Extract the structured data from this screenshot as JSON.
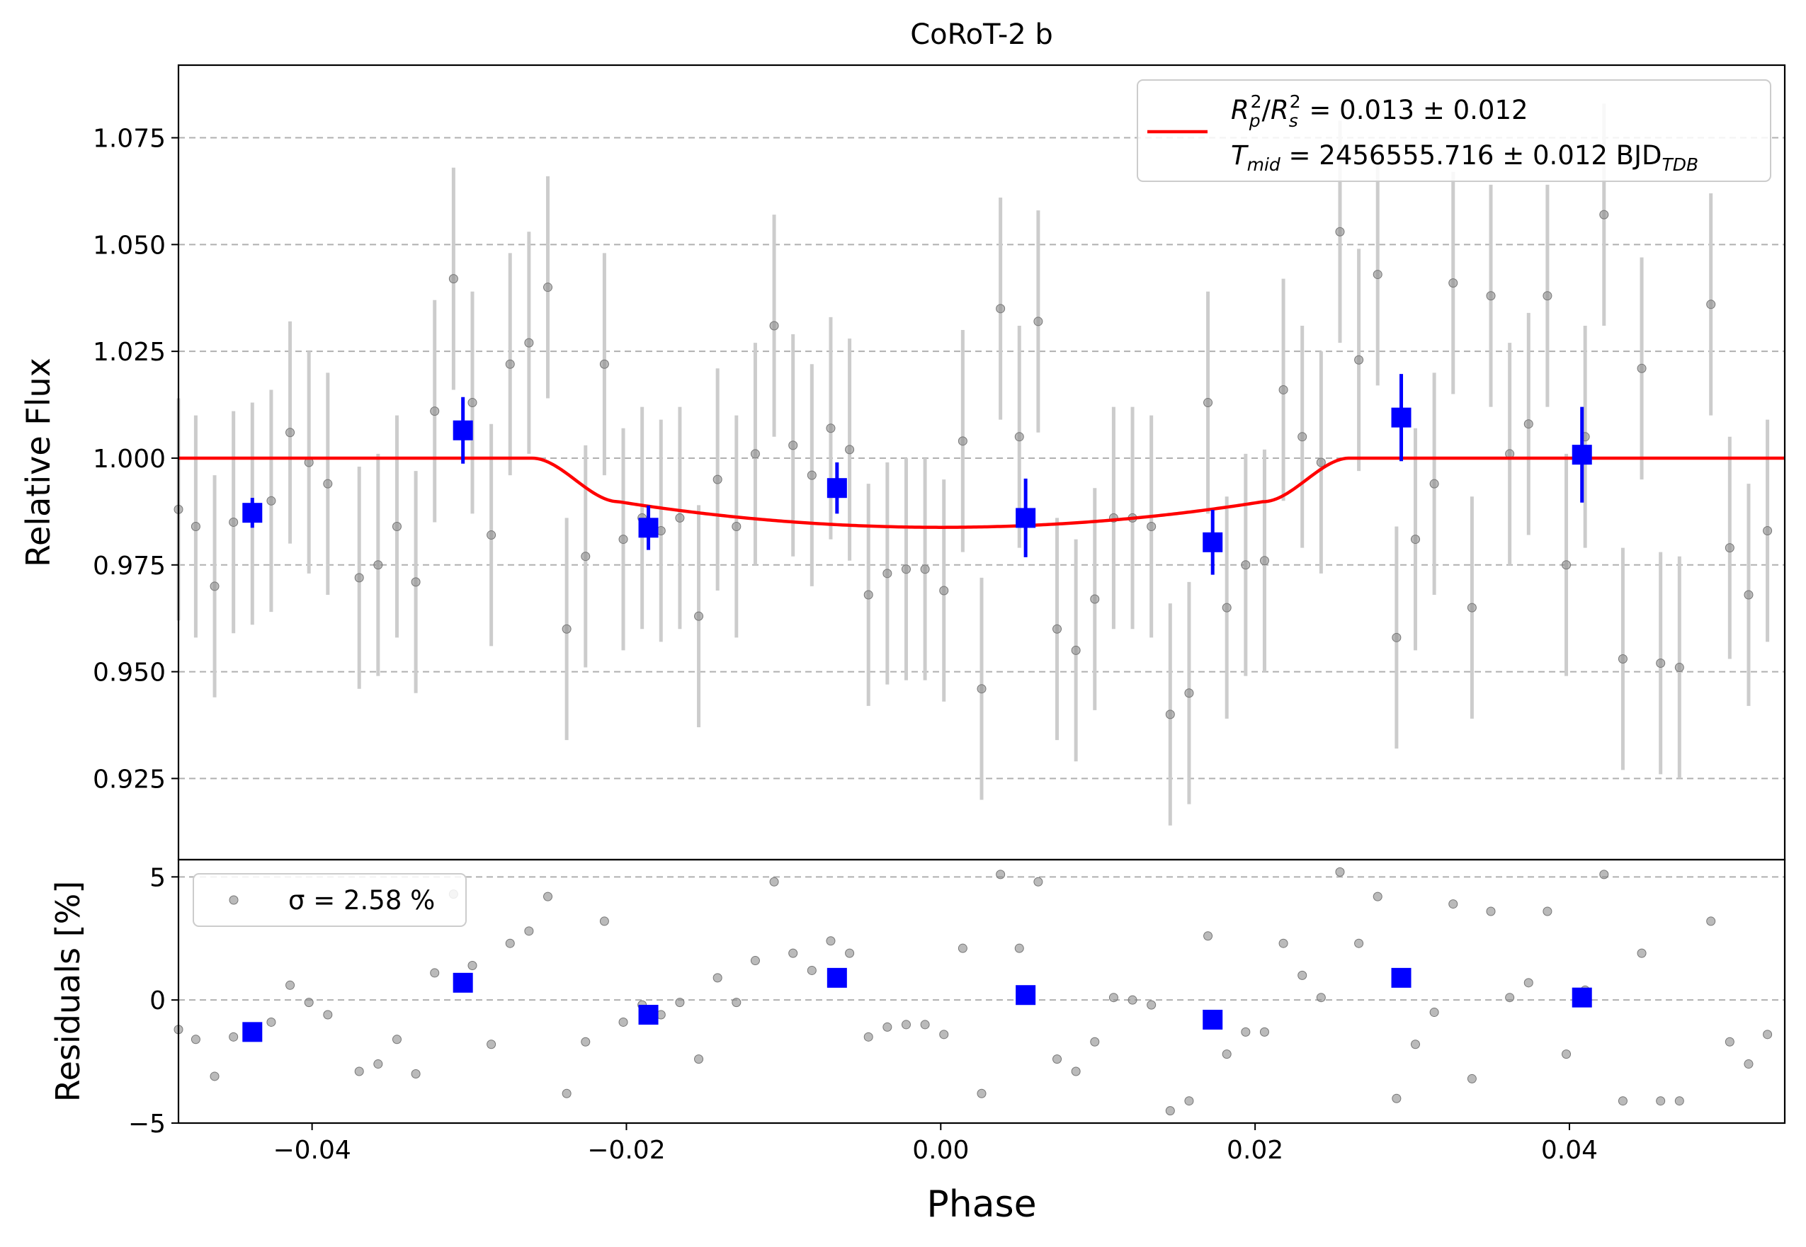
{
  "chart_data": [
    {
      "panel": "main",
      "type": "scatter",
      "title": "CoRoT-2 b",
      "xlabel": "Phase",
      "ylabel": "Relative Flux",
      "xlim": [
        -0.0485,
        0.0537
      ],
      "ylim": [
        0.906,
        1.092
      ],
      "yticks": [
        0.925,
        0.95,
        0.975,
        1.0,
        1.025,
        1.05,
        1.075
      ],
      "ytick_labels": [
        "0.925",
        "0.950",
        "0.975",
        "1.000",
        "1.025",
        "1.050",
        "1.075"
      ],
      "grid": "horizontal dashed",
      "legend_position": "top-right",
      "model": {
        "name_line1": "R_p^2/R_s^2 = 0.013 ± 0.012",
        "name_line2": "T_mid = 2456555.716 ± 0.012 BJD_TDB",
        "color": "#ff0000",
        "depth": 0.0162,
        "t14_half": 0.026,
        "t23_half": 0.0205,
        "ingress_level": 0.9898
      },
      "raw_points": {
        "color": "#8c8c8c",
        "errorbar_color": "#cccccc",
        "x": [
          -0.0485,
          -0.0474,
          -0.0462,
          -0.045,
          -0.0438,
          -0.0426,
          -0.0414,
          -0.0402,
          -0.039,
          -0.037,
          -0.0358,
          -0.0346,
          -0.0334,
          -0.0322,
          -0.031,
          -0.0298,
          -0.0286,
          -0.0274,
          -0.0262,
          -0.025,
          -0.0238,
          -0.0226,
          -0.0214,
          -0.0202,
          -0.019,
          -0.0178,
          -0.0166,
          -0.0154,
          -0.0142,
          -0.013,
          -0.0118,
          -0.0106,
          -0.0094,
          -0.0082,
          -0.007,
          -0.0058,
          -0.0046,
          -0.0034,
          -0.0022,
          -0.001,
          0.0002,
          0.0014,
          0.0026,
          0.0038,
          0.005,
          0.0062,
          0.0074,
          0.0086,
          0.0098,
          0.011,
          0.0122,
          0.0134,
          0.0146,
          0.0158,
          0.017,
          0.0182,
          0.0194,
          0.0206,
          0.0218,
          0.023,
          0.0242,
          0.0254,
          0.0266,
          0.0278,
          0.029,
          0.0302,
          0.0314,
          0.0326,
          0.0338,
          0.035,
          0.0362,
          0.0374,
          0.0386,
          0.0398,
          0.041,
          0.0422,
          0.0434,
          0.0446,
          0.0458,
          0.047,
          0.049,
          0.0502,
          0.0514,
          0.0526,
          0.0538
        ],
        "y": [
          0.988,
          0.984,
          0.97,
          0.985,
          0.987,
          0.99,
          1.006,
          0.999,
          0.994,
          0.972,
          0.975,
          0.984,
          0.971,
          1.011,
          1.042,
          1.013,
          0.982,
          1.022,
          1.027,
          1.04,
          0.96,
          0.977,
          1.022,
          0.981,
          0.986,
          0.983,
          0.986,
          0.963,
          0.995,
          0.984,
          1.001,
          1.031,
          1.003,
          0.996,
          1.007,
          1.002,
          0.968,
          0.973,
          0.974,
          0.974,
          0.969,
          1.004,
          0.946,
          1.035,
          1.005,
          1.032,
          0.96,
          0.955,
          0.967,
          0.986,
          0.986,
          0.984,
          0.94,
          0.945,
          1.013,
          0.965,
          0.975,
          0.976,
          1.016,
          1.005,
          0.999,
          1.053,
          1.023,
          1.043,
          0.958,
          0.981,
          0.994,
          1.041,
          0.965,
          1.038,
          1.001,
          1.008,
          1.038,
          0.975,
          1.005,
          1.057,
          0.953,
          1.021,
          0.952,
          0.951,
          1.036,
          0.979,
          0.968,
          0.983,
          0.987
        ],
        "yerr": 0.026,
        "residuals": [
          -1.2,
          -1.6,
          -3.1,
          -1.5,
          -1.3,
          -0.9,
          0.6,
          -0.1,
          -0.6,
          -2.9,
          -2.6,
          -1.6,
          -3.0,
          1.1,
          4.3,
          1.4,
          -1.8,
          2.3,
          2.8,
          4.2,
          -3.8,
          -1.7,
          3.2,
          -0.9,
          -0.2,
          -0.6,
          -0.1,
          -2.4,
          0.9,
          -0.1,
          1.6,
          4.8,
          1.9,
          1.2,
          2.4,
          1.9,
          -1.5,
          -1.1,
          -1.0,
          -1.0,
          -1.4,
          2.1,
          -3.8,
          5.1,
          2.1,
          4.8,
          -2.4,
          -2.9,
          -1.7,
          0.1,
          0.0,
          -0.2,
          -4.5,
          -4.1,
          2.6,
          -2.2,
          -1.3,
          -1.3,
          2.3,
          1.0,
          0.1,
          5.2,
          2.3,
          4.2,
          -4.0,
          -1.8,
          -0.5,
          3.9,
          -3.2,
          3.6,
          0.1,
          0.7,
          3.6,
          -2.2,
          0.4,
          5.1,
          -4.1,
          1.9,
          -4.1,
          -4.1,
          3.2,
          -1.7,
          -2.6,
          -1.4,
          -1.0
        ]
      },
      "binned_points": {
        "color": "#0000ff",
        "x": [
          -0.0438,
          -0.0304,
          -0.0186,
          -0.0066,
          0.0054,
          0.0173,
          0.0293,
          0.0408
        ],
        "y": [
          0.9872,
          1.0065,
          0.9837,
          0.993,
          0.986,
          0.9803,
          1.0095,
          1.0008
        ],
        "yerr": [
          0.0035,
          0.0078,
          0.0052,
          0.006,
          0.0092,
          0.0076,
          0.0102,
          0.0112
        ],
        "residuals": [
          -1.3,
          0.7,
          -0.6,
          0.9,
          0.2,
          -0.8,
          0.9,
          0.1
        ]
      }
    },
    {
      "panel": "residuals",
      "type": "scatter",
      "xlabel": "Phase",
      "ylabel": "Residuals [%]",
      "xlim": [
        -0.0485,
        0.0537
      ],
      "ylim": [
        -5.0,
        5.7
      ],
      "yticks": [
        -5,
        0,
        5
      ],
      "ytick_labels": [
        "−5",
        "0",
        "5"
      ],
      "xticks": [
        -0.04,
        -0.02,
        0.0,
        0.02,
        0.04
      ],
      "xtick_labels": [
        "−0.04",
        "−0.02",
        "0.00",
        "0.02",
        "0.04"
      ],
      "grid": "horizontal dashed",
      "legend_position": "top-left",
      "legend_label": "σ = 2.58 %"
    }
  ]
}
